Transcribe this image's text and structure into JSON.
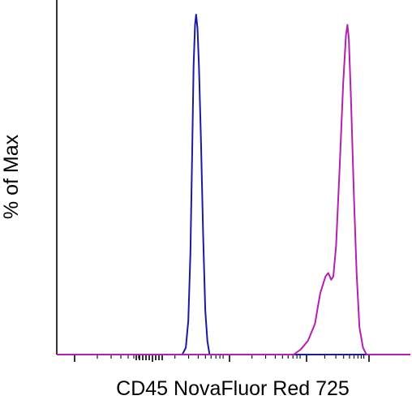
{
  "chart_data": {
    "type": "line",
    "title": "",
    "xlabel": "CD45 NovaFluor Red 725",
    "ylabel": "% of Max",
    "x_scale": "log",
    "x_tick_labels": [],
    "y_tick_labels": [],
    "ylim": [
      0,
      100
    ],
    "grid": false,
    "legend": "none",
    "series": [
      {
        "color": "#1a1aa6",
        "points": [
          [
            0.355,
            0
          ],
          [
            0.365,
            2
          ],
          [
            0.372,
            10
          ],
          [
            0.378,
            30
          ],
          [
            0.383,
            60
          ],
          [
            0.387,
            85
          ],
          [
            0.391,
            97
          ],
          [
            0.394,
            100
          ],
          [
            0.398,
            96
          ],
          [
            0.402,
            85
          ],
          [
            0.408,
            62
          ],
          [
            0.414,
            35
          ],
          [
            0.42,
            13
          ],
          [
            0.426,
            4
          ],
          [
            0.432,
            0
          ]
        ]
      },
      {
        "color": "#b31fb3",
        "points": [
          [
            0.67,
            0
          ],
          [
            0.69,
            1.5
          ],
          [
            0.71,
            4
          ],
          [
            0.73,
            9
          ],
          [
            0.745,
            18
          ],
          [
            0.76,
            23
          ],
          [
            0.768,
            24
          ],
          [
            0.776,
            22
          ],
          [
            0.782,
            23
          ],
          [
            0.79,
            32
          ],
          [
            0.8,
            55
          ],
          [
            0.81,
            80
          ],
          [
            0.818,
            94
          ],
          [
            0.822,
            97
          ],
          [
            0.826,
            93
          ],
          [
            0.832,
            75
          ],
          [
            0.84,
            48
          ],
          [
            0.848,
            24
          ],
          [
            0.856,
            8
          ],
          [
            0.866,
            2
          ],
          [
            0.876,
            0
          ]
        ]
      }
    ]
  }
}
